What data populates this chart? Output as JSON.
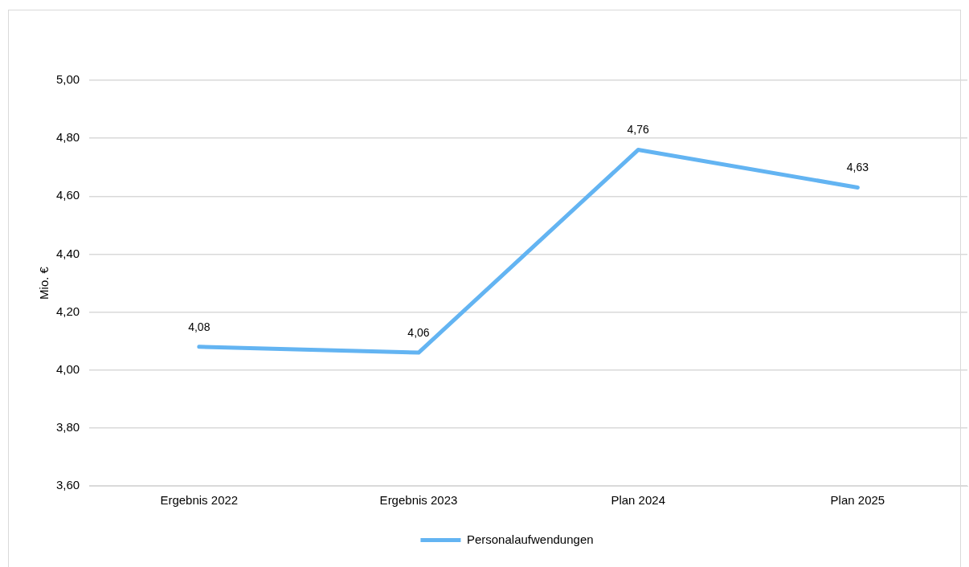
{
  "chart_data": {
    "type": "line",
    "ylabel": "Mio. €",
    "categories": [
      "Ergebnis 2022",
      "Ergebnis 2023",
      "Plan 2024",
      "Plan 2025"
    ],
    "series": [
      {
        "name": "Personalaufwendungen",
        "color": "#63b4f2",
        "values": [
          4.08,
          4.06,
          4.76,
          4.63
        ],
        "value_labels": [
          "4,08",
          "4,06",
          "4,76",
          "4,63"
        ]
      }
    ],
    "ylim": [
      3.6,
      5.0
    ],
    "yticks": [
      {
        "value": 3.6,
        "label": "3,60"
      },
      {
        "value": 3.8,
        "label": "3,80"
      },
      {
        "value": 4.0,
        "label": "4,00"
      },
      {
        "value": 4.2,
        "label": "4,20"
      },
      {
        "value": 4.4,
        "label": "4,40"
      },
      {
        "value": 4.6,
        "label": "4,60"
      },
      {
        "value": 4.8,
        "label": "4,80"
      },
      {
        "value": 5.0,
        "label": "5,00"
      }
    ],
    "grid": "y",
    "legend": "bottom",
    "marker": "none",
    "line_style": "solid"
  }
}
